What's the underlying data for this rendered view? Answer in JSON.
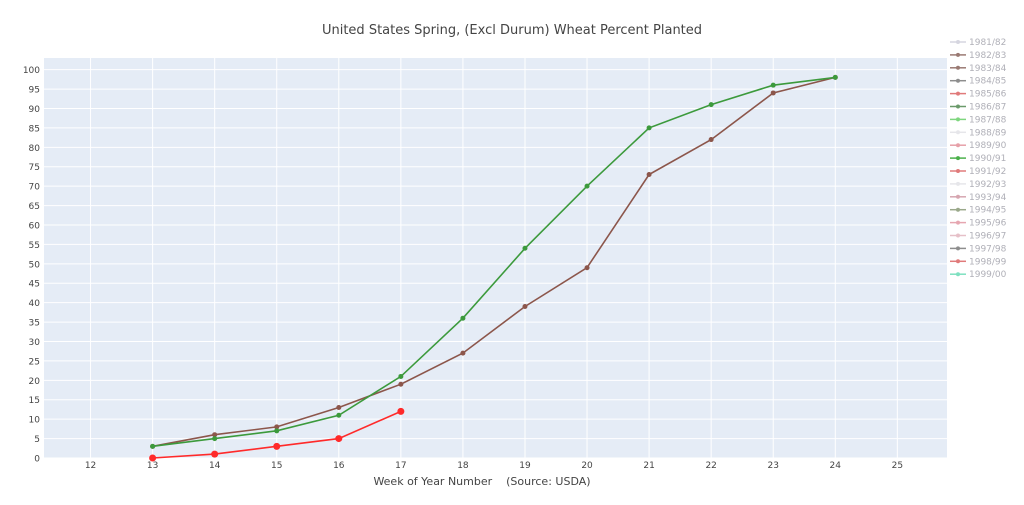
{
  "chart_data": {
    "type": "line",
    "title": "United States Spring, (Excl Durum) Wheat Percent Planted",
    "xlabel": "Week of Year Number    (Source: USDA)",
    "ylabel": "",
    "xlim": [
      11.25,
      25.8
    ],
    "ylim": [
      0,
      103
    ],
    "x_ticks": [
      12,
      13,
      14,
      15,
      16,
      17,
      18,
      19,
      20,
      21,
      22,
      23,
      24,
      25
    ],
    "y_ticks": [
      0,
      5,
      10,
      15,
      20,
      25,
      30,
      35,
      40,
      45,
      50,
      55,
      60,
      65,
      70,
      75,
      80,
      85,
      90,
      95,
      100
    ],
    "grid": true,
    "legend_position": "right",
    "legend": [
      {
        "name": "1981/82",
        "color": "#d6d6e0"
      },
      {
        "name": "1982/83",
        "color": "#9a7a73"
      },
      {
        "name": "1983/84",
        "color": "#9a7a73"
      },
      {
        "name": "1984/85",
        "color": "#8d8d8d"
      },
      {
        "name": "1985/86",
        "color": "#e07a7a"
      },
      {
        "name": "1986/87",
        "color": "#6a9a6a"
      },
      {
        "name": "1987/88",
        "color": "#7ed67e"
      },
      {
        "name": "1988/89",
        "color": "#e6e6ea"
      },
      {
        "name": "1989/90",
        "color": "#e6a0a8"
      },
      {
        "name": "1990/91",
        "color": "#4bb04b"
      },
      {
        "name": "1991/92",
        "color": "#e07a7a"
      },
      {
        "name": "1992/93",
        "color": "#e6e6ea"
      },
      {
        "name": "1993/94",
        "color": "#d6a6b0"
      },
      {
        "name": "1994/95",
        "color": "#9aa88a"
      },
      {
        "name": "1995/96",
        "color": "#e6a6b0"
      },
      {
        "name": "1996/97",
        "color": "#e6c0c8"
      },
      {
        "name": "1997/98",
        "color": "#8d8d8d"
      },
      {
        "name": "1998/99",
        "color": "#e07a7a"
      },
      {
        "name": "1999/00",
        "color": "#7ee0c0"
      }
    ],
    "series": [
      {
        "color": "#8c564b",
        "marker_size": 2.5,
        "x": [
          13,
          14,
          15,
          16,
          17,
          18,
          19,
          20,
          21,
          22,
          23,
          24
        ],
        "y": [
          3,
          6,
          8,
          13,
          19,
          27,
          39,
          49,
          73,
          82,
          94,
          98
        ]
      },
      {
        "color": "#3c9a3c",
        "marker_size": 2.5,
        "x": [
          13,
          14,
          15,
          16,
          17,
          18,
          19,
          20,
          21,
          22,
          23,
          24
        ],
        "y": [
          3,
          5,
          7,
          11,
          21,
          36,
          54,
          70,
          85,
          91,
          96,
          98
        ]
      },
      {
        "color": "#ff2a2a",
        "marker_size": 3.5,
        "x": [
          13,
          14,
          15,
          16,
          17
        ],
        "y": [
          0,
          1,
          3,
          5,
          12
        ]
      }
    ]
  }
}
